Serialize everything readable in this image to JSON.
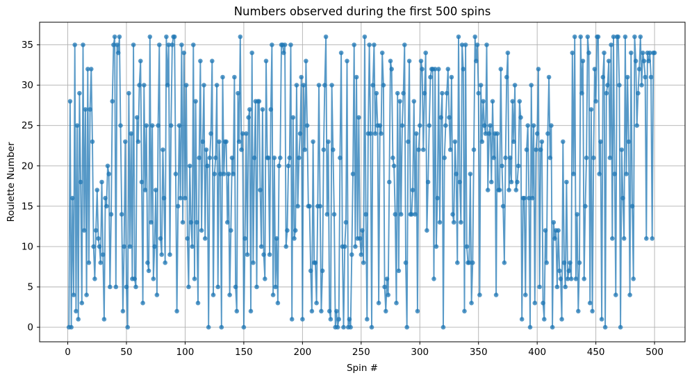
{
  "chart_data": {
    "type": "line",
    "title": "Numbers observed during the first 500 spins",
    "xlabel": "Spin #",
    "ylabel": "Roulette Number",
    "x_start": 1,
    "xlim": [
      -24,
      526
    ],
    "ylim": [
      -1.8,
      37.8
    ],
    "xticks": [
      0,
      50,
      100,
      150,
      200,
      250,
      300,
      350,
      400,
      450,
      500
    ],
    "yticks": [
      0,
      5,
      10,
      15,
      20,
      25,
      30,
      35
    ],
    "grid": true,
    "legend": "none",
    "line_color": "#1f77b4",
    "line_alpha": 0.75,
    "grid_color": "#b0b0b0",
    "marker_radius": 3.3,
    "line_width": 1.9,
    "values": [
      0,
      28,
      0,
      16,
      4,
      35,
      2,
      25,
      1,
      29,
      18,
      3,
      35,
      12,
      27,
      4,
      32,
      8,
      27,
      32,
      23,
      10,
      6,
      12,
      17,
      11,
      10,
      8,
      18,
      9,
      1,
      16,
      15,
      20,
      19,
      5,
      14,
      28,
      35,
      36,
      5,
      35,
      34,
      36,
      25,
      14,
      2,
      10,
      23,
      5,
      0,
      29,
      10,
      24,
      6,
      35,
      6,
      5,
      26,
      23,
      30,
      33,
      18,
      3,
      30,
      17,
      25,
      8,
      7,
      36,
      13,
      25,
      6,
      10,
      17,
      4,
      25,
      35,
      11,
      9,
      22,
      16,
      8,
      36,
      30,
      35,
      9,
      25,
      35,
      36,
      36,
      19,
      2,
      15,
      25,
      16,
      35,
      13,
      34,
      16,
      30,
      11,
      5,
      20,
      13,
      10,
      35,
      6,
      28,
      13,
      3,
      21,
      33,
      12,
      23,
      30,
      11,
      22,
      20,
      0,
      21,
      24,
      33,
      4,
      19,
      21,
      30,
      5,
      23,
      19,
      0,
      31,
      19,
      23,
      23,
      13,
      19,
      4,
      12,
      21,
      19,
      31,
      5,
      2,
      29,
      23,
      36,
      22,
      24,
      0,
      11,
      24,
      9,
      26,
      27,
      2,
      34,
      8,
      21,
      28,
      5,
      28,
      28,
      17,
      10,
      27,
      9,
      6,
      33,
      21,
      21,
      9,
      27,
      35,
      4,
      21,
      5,
      11,
      3,
      20,
      21,
      35,
      35,
      34,
      35,
      10,
      12,
      20,
      21,
      35,
      1,
      26,
      11,
      12,
      30,
      15,
      21,
      24,
      31,
      1,
      30,
      22,
      33,
      25,
      15,
      15,
      7,
      2,
      23,
      8,
      8,
      3,
      15,
      30,
      15,
      2,
      7,
      22,
      30,
      36,
      14,
      23,
      2,
      1,
      30,
      22,
      14,
      0,
      2,
      0,
      1,
      21,
      34,
      10,
      0,
      10,
      13,
      33,
      0,
      1,
      0,
      9,
      19,
      35,
      10,
      31,
      11,
      26,
      11,
      9,
      12,
      8,
      36,
      14,
      1,
      24,
      35,
      24,
      0,
      30,
      35,
      24,
      29,
      25,
      3,
      25,
      24,
      34,
      30,
      5,
      2,
      6,
      4,
      18,
      33,
      32,
      21,
      20,
      14,
      3,
      29,
      7,
      28,
      14,
      25,
      29,
      35,
      8,
      0,
      23,
      33,
      14,
      14,
      17,
      28,
      14,
      24,
      2,
      22,
      25,
      33,
      32,
      22,
      29,
      34,
      12,
      18,
      25,
      31,
      32,
      32,
      6,
      32,
      10,
      16,
      32,
      13,
      26,
      29,
      0,
      21,
      25,
      29,
      32,
      26,
      22,
      31,
      14,
      13,
      23,
      19,
      8,
      36,
      18,
      13,
      35,
      32,
      2,
      35,
      10,
      8,
      8,
      19,
      3,
      8,
      22,
      36,
      33,
      35,
      29,
      4,
      30,
      23,
      28,
      25,
      24,
      35,
      17,
      24,
      25,
      18,
      28,
      21,
      24,
      4,
      24,
      17,
      17,
      32,
      20,
      15,
      8,
      21,
      31,
      34,
      17,
      21,
      18,
      28,
      23,
      30,
      17,
      18,
      20,
      28,
      26,
      1,
      16,
      16,
      4,
      22,
      25,
      16,
      0,
      30,
      16,
      25,
      3,
      22,
      24,
      32,
      5,
      22,
      23,
      3,
      1,
      12,
      8,
      24,
      31,
      21,
      25,
      0,
      13,
      11,
      12,
      5,
      12,
      7,
      6,
      1,
      23,
      8,
      5,
      18,
      6,
      7,
      8,
      6,
      34,
      19,
      36,
      6,
      14,
      2,
      8,
      36,
      29,
      33,
      6,
      15,
      21,
      36,
      34,
      3,
      27,
      2,
      21,
      32,
      28,
      36,
      36,
      19,
      23,
      1,
      31,
      34,
      0,
      29,
      30,
      33,
      21,
      35,
      11,
      36,
      19,
      4,
      36,
      36,
      30,
      0,
      22,
      16,
      11,
      36,
      19,
      31,
      23,
      4,
      34,
      15,
      6,
      36,
      33,
      25,
      29,
      32,
      36,
      30,
      34,
      33,
      31,
      11,
      34,
      33,
      34,
      31,
      11,
      34,
      34
    ]
  }
}
